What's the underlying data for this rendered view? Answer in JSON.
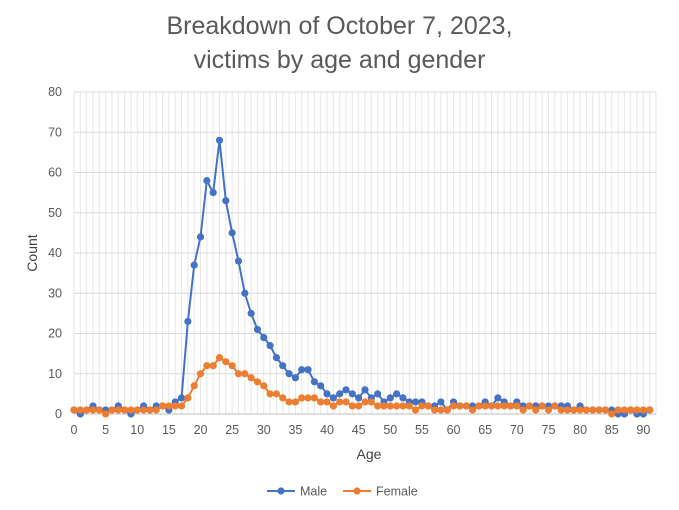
{
  "chart_data": {
    "type": "line",
    "title_line1": "Breakdown of October 7, 2023,",
    "title_line2": "victims by age and gender",
    "xlabel": "Age",
    "ylabel": "Count",
    "xlim": [
      0,
      92
    ],
    "ylim": [
      0,
      80
    ],
    "x_ticks": [
      0,
      5,
      10,
      15,
      20,
      25,
      30,
      35,
      40,
      45,
      50,
      55,
      60,
      65,
      70,
      75,
      80,
      85,
      90
    ],
    "y_ticks": [
      0,
      10,
      20,
      30,
      40,
      50,
      60,
      70,
      80
    ],
    "grid": true,
    "legend_position": "bottom",
    "x": [
      0,
      1,
      2,
      3,
      4,
      5,
      6,
      7,
      8,
      9,
      10,
      11,
      12,
      13,
      14,
      15,
      16,
      17,
      18,
      19,
      20,
      21,
      22,
      23,
      24,
      25,
      26,
      27,
      28,
      29,
      30,
      31,
      32,
      33,
      34,
      35,
      36,
      37,
      38,
      39,
      40,
      41,
      42,
      43,
      44,
      45,
      46,
      47,
      48,
      49,
      50,
      51,
      52,
      53,
      54,
      55,
      56,
      57,
      58,
      59,
      60,
      61,
      62,
      63,
      64,
      65,
      66,
      67,
      68,
      69,
      70,
      71,
      72,
      73,
      74,
      75,
      76,
      77,
      78,
      79,
      80,
      81,
      82,
      83,
      84,
      85,
      86,
      87,
      88,
      89,
      90,
      91
    ],
    "series": [
      {
        "name": "Male",
        "color": "#4472C4",
        "values": [
          1,
          0,
          1,
          2,
          1,
          1,
          1,
          2,
          1,
          0,
          1,
          2,
          1,
          2,
          2,
          1,
          3,
          4,
          23,
          37,
          44,
          58,
          55,
          68,
          53,
          45,
          38,
          30,
          25,
          21,
          19,
          17,
          14,
          12,
          10,
          9,
          11,
          11,
          8,
          7,
          5,
          4,
          5,
          6,
          5,
          4,
          6,
          4,
          5,
          3,
          4,
          5,
          4,
          3,
          3,
          3,
          2,
          2,
          3,
          1,
          3,
          2,
          2,
          2,
          2,
          3,
          2,
          4,
          3,
          2,
          3,
          2,
          2,
          2,
          2,
          2,
          2,
          2,
          2,
          1,
          2,
          1,
          1,
          1,
          1,
          1,
          0,
          0,
          1,
          0,
          0,
          1
        ]
      },
      {
        "name": "Female",
        "color": "#ED7D31",
        "values": [
          1,
          1,
          1,
          1,
          1,
          0,
          1,
          1,
          1,
          1,
          1,
          1,
          1,
          1,
          2,
          2,
          2,
          2,
          4,
          7,
          10,
          12,
          12,
          14,
          13,
          12,
          10,
          10,
          9,
          8,
          7,
          5,
          5,
          4,
          3,
          3,
          4,
          4,
          4,
          3,
          3,
          2,
          3,
          3,
          2,
          2,
          3,
          3,
          2,
          2,
          2,
          2,
          2,
          2,
          1,
          2,
          2,
          1,
          1,
          1,
          2,
          2,
          2,
          1,
          2,
          2,
          2,
          2,
          2,
          2,
          2,
          1,
          2,
          1,
          2,
          1,
          2,
          1,
          1,
          1,
          1,
          1,
          1,
          1,
          1,
          0,
          1,
          1,
          1,
          1,
          1,
          1
        ]
      }
    ]
  }
}
